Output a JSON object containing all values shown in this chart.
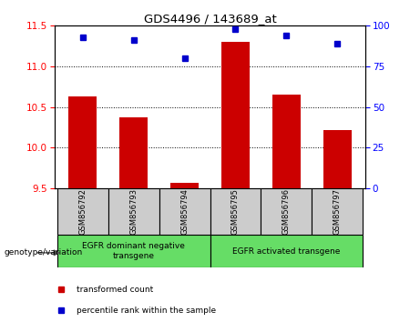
{
  "title": "GDS4496 / 143689_at",
  "samples": [
    "GSM856792",
    "GSM856793",
    "GSM856794",
    "GSM856795",
    "GSM856796",
    "GSM856797"
  ],
  "transformed_count": [
    10.63,
    10.37,
    9.57,
    11.3,
    10.65,
    10.22
  ],
  "percentile_rank": [
    93,
    91,
    80,
    98,
    94,
    89
  ],
  "ylim_left": [
    9.5,
    11.5
  ],
  "ylim_right": [
    0,
    100
  ],
  "yticks_left": [
    9.5,
    10.0,
    10.5,
    11.0,
    11.5
  ],
  "yticks_right": [
    0,
    25,
    50,
    75,
    100
  ],
  "bar_color": "#cc0000",
  "dot_color": "#0000cc",
  "group1_label": "EGFR dominant negative\ntransgene",
  "group2_label": "EGFR activated transgene",
  "group1_indices": [
    0,
    1,
    2
  ],
  "group2_indices": [
    3,
    4,
    5
  ],
  "group_bg_color": "#66dd66",
  "sample_box_color": "#cccccc",
  "legend_bar_label": "transformed count",
  "legend_dot_label": "percentile rank within the sample",
  "genotype_label": "genotype/variation"
}
